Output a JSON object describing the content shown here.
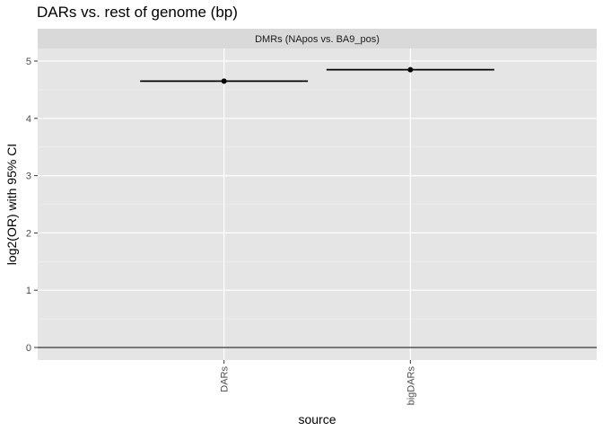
{
  "chart_data": {
    "type": "scatter",
    "title": "DARs vs. rest of genome (bp)",
    "facet_label": "DMRs (NApos vs. BA9_pos)",
    "xlabel": "source",
    "ylabel": "log2(OR) with 95% CI",
    "categories": [
      "DARs",
      "bigDARs"
    ],
    "points": [
      {
        "category": "DARs",
        "y": 4.65,
        "ci_low": 4.65,
        "ci_high": 4.65
      },
      {
        "category": "bigDARs",
        "y": 4.85,
        "ci_low": 4.85,
        "ci_high": 4.85
      }
    ],
    "ylim": [
      -0.22,
      5.22
    ],
    "y_ticks": [
      0,
      1,
      2,
      3,
      4,
      5
    ],
    "hline": 0,
    "grid": true,
    "colors": {
      "panel": "#e5e5e5",
      "strip": "#d9d9d9",
      "grid_major": "#ffffff",
      "grid_minor": "#f2f2f2",
      "point": "#000000",
      "axis_text": "#4d4d4d"
    }
  }
}
